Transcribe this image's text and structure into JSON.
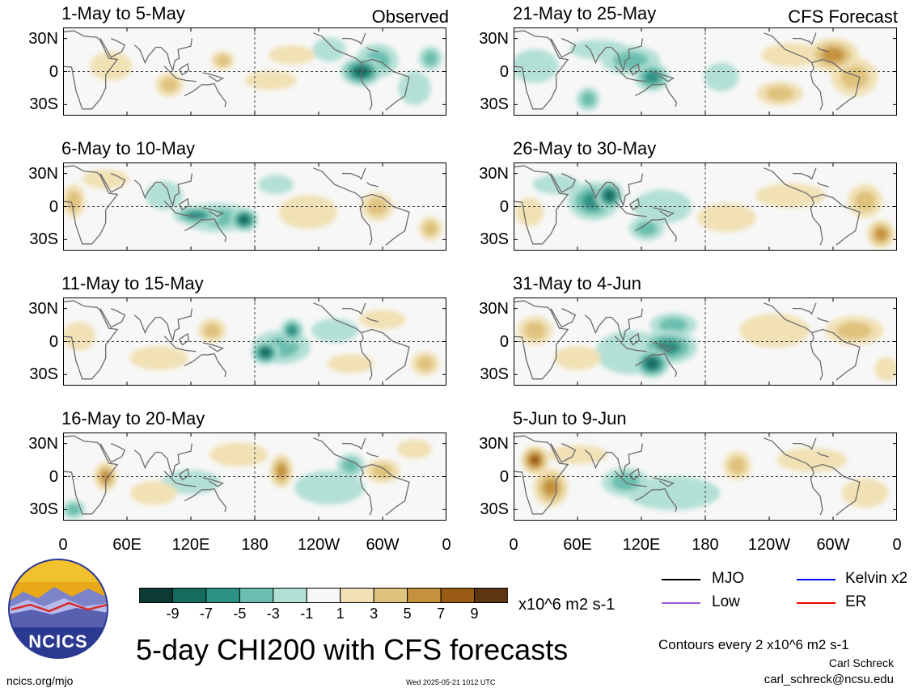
{
  "header": {
    "observed_label": "Observed",
    "forecast_label": "CFS Forecast"
  },
  "panels": [
    {
      "title": "1-May to 5-May"
    },
    {
      "title": "6-May to 10-May"
    },
    {
      "title": "11-May to 15-May"
    },
    {
      "title": "16-May to 20-May"
    },
    {
      "title": "21-May to 25-May"
    },
    {
      "title": "26-May to 30-May"
    },
    {
      "title": "31-May to 4-Jun"
    },
    {
      "title": "5-Jun to 9-Jun"
    }
  ],
  "axes": {
    "y_ticks": [
      "30N",
      "0",
      "30S"
    ],
    "x_ticks": [
      "0",
      "60E",
      "120E",
      "180",
      "120W",
      "60W",
      "0"
    ]
  },
  "colorbar": {
    "labels": [
      "-9",
      "-7",
      "-5",
      "-3",
      "-1",
      "1",
      "3",
      "5",
      "7",
      "9"
    ],
    "colors": [
      "#0b3b33",
      "#156b5e",
      "#2d9285",
      "#6cbfb0",
      "#b3e0d6",
      "#f7f7f7",
      "#f1e1b5",
      "#dfc27d",
      "#c4913c",
      "#9a5b14",
      "#5c3610"
    ],
    "units": "x10^6 m2 s-1"
  },
  "legend": {
    "items": [
      {
        "label": "MJO",
        "color": "#000000"
      },
      {
        "label": "Kelvin x2",
        "color": "#0000ff"
      },
      {
        "label": "Low",
        "color": "#9b59d0"
      },
      {
        "label": "ER",
        "color": "#ff0000"
      }
    ],
    "contour_note": "Contours every 2 x10^6 m2 s-1",
    "author": "Carl Schreck",
    "email": "carl_schreck@ncsu.edu"
  },
  "title": "5-day CHI200 with CFS forecasts",
  "footer": {
    "url": "ncics.org/mjo",
    "timestamp": "Wed 2025-05-21 1012 UTC"
  },
  "logo": {
    "text": "NCICS"
  },
  "chart_data": {
    "type": "heatmap",
    "variable": "CHI200 anomaly",
    "units": "x10^6 m2 s-1",
    "x_ticks": [
      "0",
      "60E",
      "120E",
      "180",
      "120W",
      "60W",
      "0"
    ],
    "y_ticks": [
      "30N",
      "0",
      "30S"
    ],
    "xlim": [
      0,
      360
    ],
    "ylim": [
      -40,
      40
    ],
    "color_levels": [
      -9,
      -7,
      -5,
      -3,
      -1,
      1,
      3,
      5,
      7,
      9
    ],
    "contour_interval": 2,
    "grid": true,
    "panels": [
      {
        "title": "1-May to 5-May",
        "label": "Observed",
        "blobs": [
          {
            "lon": 280,
            "lat": 0,
            "val": -9,
            "w": 18,
            "h": 12
          },
          {
            "lon": 295,
            "lat": 10,
            "val": -5,
            "w": 18,
            "h": 14
          },
          {
            "lon": 345,
            "lat": 12,
            "val": -5,
            "w": 10,
            "h": 10
          },
          {
            "lon": 100,
            "lat": -12,
            "val": 5,
            "w": 12,
            "h": 10
          },
          {
            "lon": 150,
            "lat": 10,
            "val": 5,
            "w": 10,
            "h": 8
          },
          {
            "lon": 215,
            "lat": 15,
            "val": 3,
            "w": 20,
            "h": 8
          },
          {
            "lon": 195,
            "lat": -8,
            "val": 3,
            "w": 22,
            "h": 8
          },
          {
            "lon": 45,
            "lat": 5,
            "val": 3,
            "w": 18,
            "h": 12
          },
          {
            "lon": 330,
            "lat": -15,
            "val": -3,
            "w": 14,
            "h": 14
          },
          {
            "lon": 250,
            "lat": 20,
            "val": -3,
            "w": 14,
            "h": 10
          }
        ]
      },
      {
        "title": "6-May to 10-May",
        "label": "",
        "blobs": [
          {
            "lon": 170,
            "lat": -12,
            "val": -9,
            "w": 12,
            "h": 10
          },
          {
            "lon": 125,
            "lat": -8,
            "val": -7,
            "w": 20,
            "h": 8
          },
          {
            "lon": 145,
            "lat": -10,
            "val": -5,
            "w": 30,
            "h": 12
          },
          {
            "lon": 95,
            "lat": 10,
            "val": -3,
            "w": 16,
            "h": 12
          },
          {
            "lon": 295,
            "lat": 0,
            "val": 5,
            "w": 14,
            "h": 12
          },
          {
            "lon": 230,
            "lat": -5,
            "val": 3,
            "w": 25,
            "h": 14
          },
          {
            "lon": 10,
            "lat": 5,
            "val": 5,
            "w": 10,
            "h": 14
          },
          {
            "lon": 345,
            "lat": -20,
            "val": 5,
            "w": 10,
            "h": 10
          },
          {
            "lon": 40,
            "lat": 25,
            "val": 3,
            "w": 20,
            "h": 8
          },
          {
            "lon": 200,
            "lat": 20,
            "val": -3,
            "w": 15,
            "h": 8
          }
        ]
      },
      {
        "title": "11-May to 15-May",
        "label": "",
        "blobs": [
          {
            "lon": 190,
            "lat": -10,
            "val": -9,
            "w": 12,
            "h": 10
          },
          {
            "lon": 215,
            "lat": 10,
            "val": -7,
            "w": 10,
            "h": 10
          },
          {
            "lon": 205,
            "lat": -5,
            "val": -5,
            "w": 25,
            "h": 14
          },
          {
            "lon": 255,
            "lat": 10,
            "val": -3,
            "w": 20,
            "h": 10
          },
          {
            "lon": 140,
            "lat": 10,
            "val": 5,
            "w": 12,
            "h": 10
          },
          {
            "lon": 340,
            "lat": -20,
            "val": 5,
            "w": 12,
            "h": 10
          },
          {
            "lon": 15,
            "lat": 5,
            "val": 3,
            "w": 14,
            "h": 12
          },
          {
            "lon": 90,
            "lat": -15,
            "val": 3,
            "w": 25,
            "h": 10
          },
          {
            "lon": 300,
            "lat": 20,
            "val": 3,
            "w": 20,
            "h": 8
          },
          {
            "lon": 270,
            "lat": -20,
            "val": 3,
            "w": 20,
            "h": 8
          }
        ]
      },
      {
        "title": "16-May to 20-May",
        "label": "",
        "blobs": [
          {
            "lon": 270,
            "lat": 10,
            "val": -5,
            "w": 12,
            "h": 10
          },
          {
            "lon": 120,
            "lat": -5,
            "val": -3,
            "w": 25,
            "h": 10
          },
          {
            "lon": 250,
            "lat": -10,
            "val": -3,
            "w": 30,
            "h": 14
          },
          {
            "lon": 10,
            "lat": -30,
            "val": -5,
            "w": 10,
            "h": 8
          },
          {
            "lon": 40,
            "lat": 0,
            "val": 7,
            "w": 10,
            "h": 12
          },
          {
            "lon": 205,
            "lat": 5,
            "val": 7,
            "w": 10,
            "h": 14
          },
          {
            "lon": 300,
            "lat": 5,
            "val": 5,
            "w": 15,
            "h": 10
          },
          {
            "lon": 165,
            "lat": 20,
            "val": 3,
            "w": 25,
            "h": 10
          },
          {
            "lon": 85,
            "lat": -15,
            "val": 3,
            "w": 20,
            "h": 10
          },
          {
            "lon": 330,
            "lat": 25,
            "val": 3,
            "w": 15,
            "h": 8
          }
        ]
      },
      {
        "title": "21-May to 25-May",
        "label": "CFS Forecast",
        "blobs": [
          {
            "lon": 130,
            "lat": -5,
            "val": -7,
            "w": 15,
            "h": 12
          },
          {
            "lon": 110,
            "lat": 10,
            "val": -5,
            "w": 25,
            "h": 12
          },
          {
            "lon": 80,
            "lat": 20,
            "val": -3,
            "w": 25,
            "h": 8
          },
          {
            "lon": 70,
            "lat": -25,
            "val": -5,
            "w": 10,
            "h": 10
          },
          {
            "lon": 195,
            "lat": -5,
            "val": -3,
            "w": 15,
            "h": 12
          },
          {
            "lon": 300,
            "lat": 15,
            "val": 7,
            "w": 22,
            "h": 14
          },
          {
            "lon": 320,
            "lat": -5,
            "val": 5,
            "w": 20,
            "h": 16
          },
          {
            "lon": 250,
            "lat": -20,
            "val": 5,
            "w": 20,
            "h": 10
          },
          {
            "lon": 260,
            "lat": 15,
            "val": 3,
            "w": 25,
            "h": 10
          },
          {
            "lon": 20,
            "lat": 5,
            "val": -3,
            "w": 20,
            "h": 14
          }
        ]
      },
      {
        "title": "26-May to 30-May",
        "label": "",
        "blobs": [
          {
            "lon": 90,
            "lat": 10,
            "val": -9,
            "w": 12,
            "h": 12
          },
          {
            "lon": 75,
            "lat": 5,
            "val": -7,
            "w": 22,
            "h": 16
          },
          {
            "lon": 125,
            "lat": -20,
            "val": -5,
            "w": 15,
            "h": 10
          },
          {
            "lon": 140,
            "lat": 0,
            "val": -3,
            "w": 25,
            "h": 14
          },
          {
            "lon": 345,
            "lat": -25,
            "val": 7,
            "w": 12,
            "h": 12
          },
          {
            "lon": 330,
            "lat": 5,
            "val": 5,
            "w": 15,
            "h": 14
          },
          {
            "lon": 200,
            "lat": -10,
            "val": 3,
            "w": 25,
            "h": 12
          },
          {
            "lon": 260,
            "lat": 10,
            "val": 3,
            "w": 30,
            "h": 10
          },
          {
            "lon": 15,
            "lat": -5,
            "val": 3,
            "w": 12,
            "h": 12
          },
          {
            "lon": 40,
            "lat": 20,
            "val": -3,
            "w": 20,
            "h": 8
          }
        ]
      },
      {
        "title": "31-May to 4-Jun",
        "label": "",
        "blobs": [
          {
            "lon": 130,
            "lat": -20,
            "val": -9,
            "w": 15,
            "h": 12
          },
          {
            "lon": 145,
            "lat": -5,
            "val": -7,
            "w": 25,
            "h": 14
          },
          {
            "lon": 150,
            "lat": 15,
            "val": -5,
            "w": 20,
            "h": 10
          },
          {
            "lon": 110,
            "lat": -10,
            "val": -3,
            "w": 30,
            "h": 18
          },
          {
            "lon": 320,
            "lat": 10,
            "val": 5,
            "w": 25,
            "h": 12
          },
          {
            "lon": 245,
            "lat": 10,
            "val": 3,
            "w": 30,
            "h": 14
          },
          {
            "lon": 20,
            "lat": 10,
            "val": 5,
            "w": 15,
            "h": 12
          },
          {
            "lon": 60,
            "lat": -15,
            "val": 3,
            "w": 20,
            "h": 10
          },
          {
            "lon": 350,
            "lat": -25,
            "val": 3,
            "w": 10,
            "h": 10
          }
        ]
      },
      {
        "title": "5-Jun to 9-Jun",
        "label": "",
        "blobs": [
          {
            "lon": 20,
            "lat": 15,
            "val": 9,
            "w": 12,
            "h": 12
          },
          {
            "lon": 35,
            "lat": -10,
            "val": 7,
            "w": 15,
            "h": 16
          },
          {
            "lon": 105,
            "lat": -5,
            "val": -5,
            "w": 20,
            "h": 12
          },
          {
            "lon": 150,
            "lat": -15,
            "val": -3,
            "w": 40,
            "h": 14
          },
          {
            "lon": 210,
            "lat": 10,
            "val": 5,
            "w": 12,
            "h": 12
          },
          {
            "lon": 280,
            "lat": 15,
            "val": 3,
            "w": 30,
            "h": 10
          },
          {
            "lon": 330,
            "lat": -15,
            "val": 3,
            "w": 20,
            "h": 12
          },
          {
            "lon": 60,
            "lat": 20,
            "val": 3,
            "w": 25,
            "h": 8
          }
        ]
      }
    ]
  }
}
